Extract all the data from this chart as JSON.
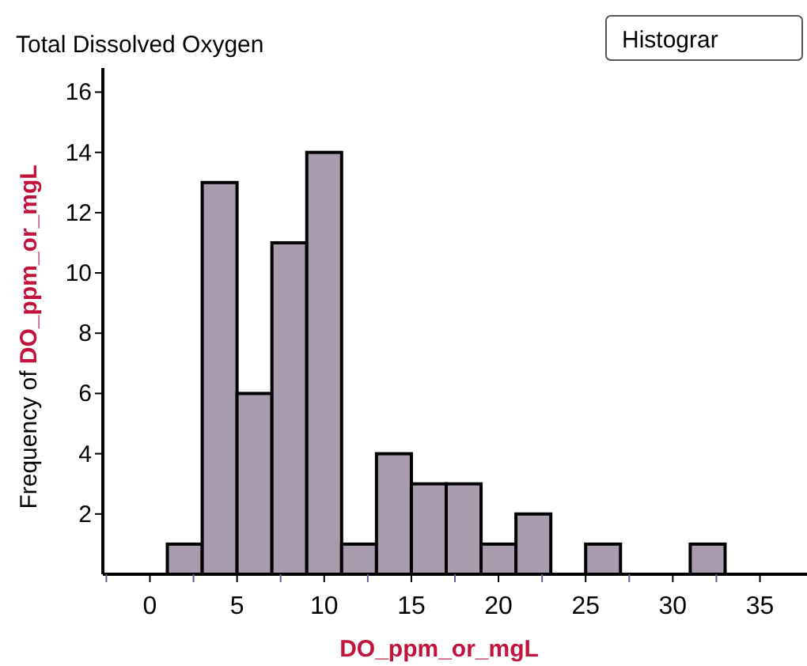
{
  "chart_data": {
    "type": "histogram",
    "title": "Total Dissolved Oxygen",
    "xlabel": "DO_ppm_or_mgL",
    "ylabel": "Frequency of DO_ppm_or_mgL",
    "bins": [
      1,
      3,
      5,
      7,
      9,
      11,
      13,
      15,
      17,
      19,
      21,
      23,
      25,
      27,
      29,
      31,
      33
    ],
    "values": [
      1,
      13,
      6,
      11,
      14,
      1,
      4,
      3,
      3,
      1,
      2,
      0,
      1,
      0,
      0,
      1
    ],
    "color": "#a89cae",
    "xlim": [
      -2.7,
      37.7
    ],
    "xticks": [
      {
        "value": -2.5,
        "label": null
      },
      0,
      {
        "value": 2.5,
        "label": null
      },
      5,
      {
        "value": 7.5,
        "label": null
      },
      10,
      {
        "value": 12.5,
        "label": null
      },
      15,
      {
        "value": 17.5,
        "label": null
      },
      20,
      {
        "value": 22.5,
        "label": null
      },
      25,
      {
        "value": 27.5,
        "label": null
      },
      30,
      {
        "value": 32.5,
        "label": null
      },
      35
    ],
    "ylim": [
      0,
      16.8
    ],
    "yticks": [
      2,
      4,
      6,
      8,
      10,
      12,
      14,
      16
    ],
    "annotations": [
      "Histograr"
    ]
  }
}
